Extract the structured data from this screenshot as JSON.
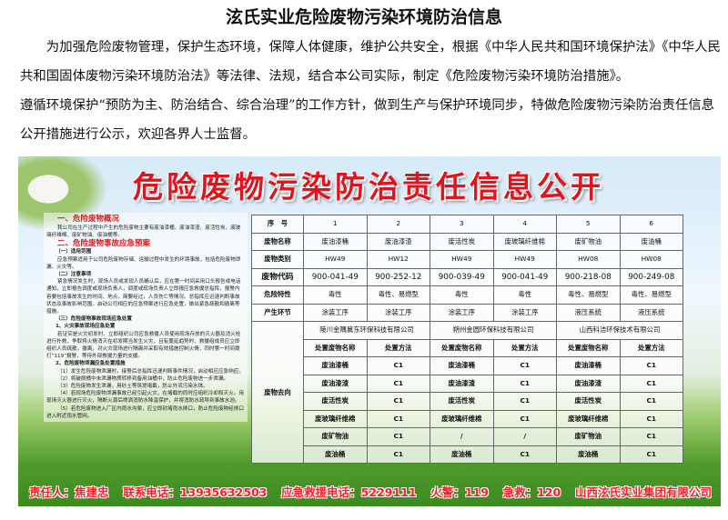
{
  "title": "泫氏实业危险废物污染环境防治信息",
  "intro": [
    "为加强危险废物管理，保护生态环境，保障人体健康，维护公共安全，根据《中华人民共和国环境保护法》《中华人民共和国固体废物污染环境防治法》等法律、法规，结合本公司实际，制定《危险废物污染环境防治措施》。",
    "遵循环境保护“预防为主、防治结合、综合治理”的工作方针，做到生产与保护环境同步，特做危险废物污染防治责任信息公开措施进行公示，欢迎各界人士监督。"
  ],
  "banner": {
    "title": "危险废物污染防治责任信息公开",
    "left": [
      {
        "t": "h",
        "v": "一、危险废物概况"
      },
      {
        "t": "p",
        "v": "我公司在生产过程中产生的危险废物主要有废油漆桶、废油漆渣、废活性炭、废玻璃纤维棉、废矿物油、废油桶等。"
      },
      {
        "t": "h",
        "v": "二、危险废物事故应急预案"
      },
      {
        "t": "s",
        "v": "（一）适用范围"
      },
      {
        "t": "p",
        "v": "应急预案适用于公司危险废物存储、运输过程中发生的环境事故，包括危险废物泄漏、火灾等。"
      },
      {
        "t": "s",
        "v": "（二）注意事项"
      },
      {
        "t": "p",
        "v": "紧急情况发生时，现场人员或发现人员确认后，应在第一时间采用口头报告或电话通知，立即报告调度或现场负责人，调度或现场负责人立即报应急救援总指挥，报警内容要包括事故发生的时间、地点，简要经过，人员伤亡等情况。总指挥应迅速判断事故状态及事故影响范围，启动公司相应的应急预案进行应急处置，做出紧急疏散和撤离等措施。"
      },
      {
        "t": "s",
        "v": "（三）危险废物事故现场应急处置"
      },
      {
        "t": "s",
        "v": "1、火灾事故现场应急处置"
      },
      {
        "t": "p",
        "v": "若证实是火灾初发时，立即组织公司应急救援人员使用现场存放的灭火器及消火栓进行扑救，争取将火情消灭在初发期当发生火灾，且有蔓延趋势时，救援组成员应立即组织人员疏散，撤离，对火灾现场进行隔离并采取有效措施控制火情，同时第一时间拨打“119”报警，等待外部救援力量的支援。"
      },
      {
        "t": "s",
        "v": "2、危险废物泄漏应急处置措施"
      },
      {
        "t": "p",
        "v": "（1）发生危险废物泄漏时，接警后总指挥迅速判断事件情况，启动相应应急响应。"
      },
      {
        "t": "p",
        "v": "（2）将破损桶中未泄漏物质转移到备用油桶中，防止危险废物进一步泄漏。"
      },
      {
        "t": "p",
        "v": "（3）危险废物发生泄漏，用砂土等筑堤堵截，防止外流污染水体。"
      },
      {
        "t": "p",
        "v": "（4）若现场危险废物泄漏事故已经引起火灾，在堵截的同时应组织冷却和灭火。用现场灭火器进行灭火，隔断火源后喷洒消防水降温保护，并将消防水疏导到事故水池。"
      },
      {
        "t": "p",
        "v": "（5）若危险废物进入厂区内雨水沟渠，应立即封堵雨水排口，防止危险废物经排口进入附近雨水管网。"
      }
    ],
    "table": {
      "info_rows": [
        {
          "label": "序　号",
          "values": [
            "1",
            "2",
            "3",
            "4",
            "5",
            "6"
          ]
        },
        {
          "label": "废物名称",
          "values": [
            "废油漆桶",
            "废油漆渣",
            "废活性炭",
            "废玻璃纤维棉",
            "废矿物油",
            "废油桶"
          ]
        },
        {
          "label": "废物类别",
          "values": [
            "HW49",
            "HW12",
            "HW49",
            "HW49",
            "HW08",
            "HW08"
          ]
        },
        {
          "label": "废物代码",
          "values": [
            "900-041-49",
            "900-252-12",
            "900-039-49",
            "900-041-49",
            "900-218-08",
            "900-249-08"
          ]
        },
        {
          "label": "危险特性",
          "values": [
            "毒性",
            "毒性、易燃型",
            "毒性",
            "毒性",
            "毒性、易燃型",
            "毒性、易燃型"
          ]
        },
        {
          "label": "产生环节",
          "values": [
            "涂装工序",
            "涂装工序",
            "涂装工序",
            "涂装工序",
            "液压系统",
            "液压系统"
          ]
        }
      ],
      "destination_label": "废物去向",
      "companies": [
        "陵川金隅冀东环保科技有限公司",
        "朔州金圆环保科技有限公司",
        "山西科洁环保技术有限公司"
      ],
      "sub_headers": [
        "处置废物名称",
        "处置方法"
      ],
      "disposal_rows": [
        [
          "废油漆桶",
          "C1",
          "废油漆桶",
          "C1",
          "废油漆桶",
          "C1"
        ],
        [
          "废油漆渣",
          "C1",
          "废油漆渣",
          "C1",
          "废油漆渣",
          "C1"
        ],
        [
          "废活性炭",
          "C1",
          "废活性炭",
          "C1",
          "废活性炭",
          "C1"
        ],
        [
          "废玻璃纤维棉",
          "C1",
          "废玻璃纤维棉",
          "C1",
          "废玻璃纤维棉",
          "C1"
        ],
        [
          "废矿物油",
          "C1",
          "/",
          "/",
          "废矿物油",
          "C1"
        ],
        [
          "废油桶",
          "C1",
          "废油桶",
          "C1",
          "废油桶",
          "C1"
        ]
      ]
    },
    "footer": [
      "责任人：焦建忠",
      "联系电话：13935632503",
      "应急救援电话：5229111",
      "火警：119",
      "急救：120",
      "山西泫氏实业集团有限公司"
    ]
  }
}
